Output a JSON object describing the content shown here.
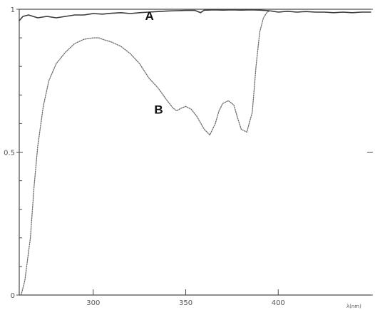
{
  "chart_data": {
    "type": "line",
    "title": "",
    "xlabel": "",
    "x_unit_label": "λ(nm)",
    "ylabel": "",
    "xlim": [
      260,
      450
    ],
    "ylim": [
      0,
      1
    ],
    "x_ticks": [
      300,
      350,
      400
    ],
    "x_tick_labels": [
      "300",
      "350",
      "400"
    ],
    "y_tick_labels": [
      {
        "value": 0,
        "label": "0"
      },
      {
        "value": 0.5,
        "label": "0.5"
      },
      {
        "value": 1,
        "label": "1"
      }
    ],
    "y_minor_ticks": [
      0.1,
      0.2,
      0.3,
      0.4,
      0.6,
      0.7,
      0.8,
      0.9
    ],
    "grid": false,
    "legend": "none",
    "series": [
      {
        "name": "A",
        "color": "#3a3a3a",
        "style": "solid",
        "x": [
          260,
          262,
          265,
          270,
          275,
          280,
          285,
          290,
          295,
          300,
          305,
          310,
          315,
          320,
          325,
          330,
          335,
          340,
          345,
          350,
          355,
          358,
          360,
          362,
          365,
          370,
          375,
          380,
          385,
          390,
          395,
          400,
          405,
          410,
          415,
          420,
          425,
          430,
          435,
          440,
          445,
          450
        ],
        "values": [
          0.96,
          0.975,
          0.98,
          0.97,
          0.975,
          0.97,
          0.975,
          0.98,
          0.98,
          0.985,
          0.983,
          0.986,
          0.988,
          0.985,
          0.988,
          0.99,
          0.992,
          0.994,
          0.995,
          0.996,
          0.996,
          0.988,
          0.997,
          0.997,
          0.998,
          0.997,
          0.998,
          0.997,
          0.998,
          0.997,
          0.995,
          0.99,
          0.993,
          0.99,
          0.992,
          0.99,
          0.99,
          0.988,
          0.99,
          0.988,
          0.99,
          0.99
        ]
      },
      {
        "name": "B",
        "color": "#6a6a6a",
        "style": "dotted",
        "x": [
          261,
          263,
          266,
          268,
          270,
          273,
          276,
          280,
          285,
          290,
          295,
          300,
          303,
          305,
          310,
          315,
          320,
          325,
          330,
          335,
          340,
          343,
          345,
          348,
          350,
          353,
          356,
          360,
          363,
          366,
          368,
          370,
          373,
          376,
          378,
          380,
          383,
          386,
          388,
          390,
          392,
          394,
          396
        ],
        "values": [
          0.0,
          0.05,
          0.2,
          0.38,
          0.52,
          0.66,
          0.75,
          0.81,
          0.85,
          0.88,
          0.895,
          0.9,
          0.9,
          0.895,
          0.885,
          0.87,
          0.845,
          0.81,
          0.76,
          0.725,
          0.68,
          0.655,
          0.645,
          0.655,
          0.66,
          0.65,
          0.625,
          0.58,
          0.56,
          0.6,
          0.645,
          0.67,
          0.68,
          0.665,
          0.62,
          0.58,
          0.57,
          0.64,
          0.8,
          0.92,
          0.97,
          0.99,
          0.995
        ]
      }
    ],
    "annotations": [
      {
        "text": "A",
        "x": 328,
        "y": 0.963
      },
      {
        "text": "B",
        "x": 333,
        "y": 0.635
      }
    ]
  }
}
